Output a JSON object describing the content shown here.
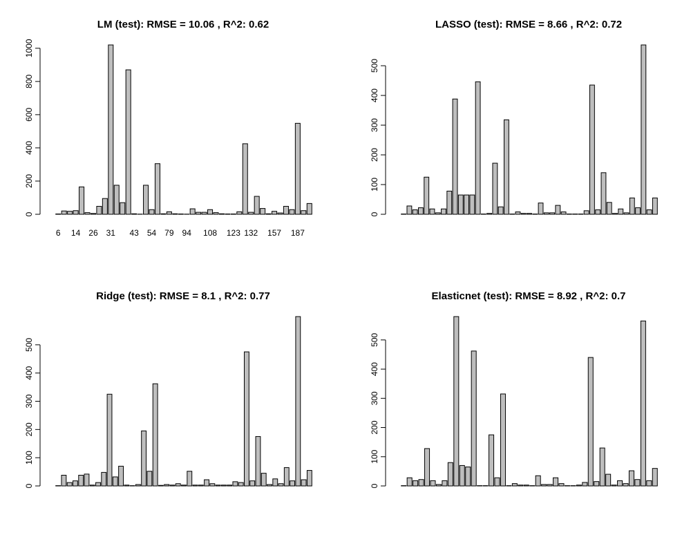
{
  "chart_data": [
    {
      "type": "bar",
      "title": "LM (test): RMSE = 10.06 , R^2: 0.62",
      "xlabel": "",
      "ylabel": "",
      "ylim": [
        0,
        1020
      ],
      "yticks": [
        0,
        200,
        400,
        600,
        800,
        1000
      ],
      "xtick_labels": [
        "6",
        "14",
        "26",
        "31",
        "43",
        "54",
        "79",
        "94",
        "108",
        "123",
        "132",
        "157",
        "187"
      ],
      "xtick_bar_index": [
        0,
        3,
        6,
        9,
        13,
        16,
        19,
        22,
        26,
        30,
        33,
        37,
        41
      ],
      "grid": false,
      "values": [
        2,
        20,
        18,
        22,
        165,
        10,
        5,
        48,
        95,
        1020,
        175,
        70,
        870,
        3,
        1,
        175,
        28,
        305,
        3,
        15,
        3,
        2,
        1,
        33,
        12,
        12,
        28,
        10,
        3,
        2,
        2,
        15,
        425,
        12,
        108,
        35,
        3,
        18,
        8,
        48,
        28,
        548,
        22,
        65
      ]
    },
    {
      "type": "bar",
      "title": "LASSO (test): RMSE = 8.66 , R^2: 0.72",
      "xlabel": "",
      "ylabel": "",
      "ylim": [
        0,
        570
      ],
      "yticks": [
        0,
        100,
        200,
        300,
        400,
        500
      ],
      "grid": false,
      "values": [
        1,
        28,
        15,
        22,
        125,
        18,
        5,
        18,
        78,
        388,
        65,
        65,
        65,
        446,
        1,
        3,
        172,
        25,
        318,
        1,
        8,
        3,
        3,
        1,
        38,
        5,
        5,
        30,
        8,
        1,
        1,
        1,
        12,
        435,
        15,
        140,
        40,
        3,
        18,
        5,
        55,
        22,
        570,
        15,
        55
      ]
    },
    {
      "type": "bar",
      "title": "Ridge (test): RMSE = 8.1 , R^2: 0.77",
      "xlabel": "",
      "ylabel": "",
      "ylim": [
        0,
        600
      ],
      "yticks": [
        0,
        100,
        200,
        300,
        400,
        500
      ],
      "grid": false,
      "values": [
        1,
        38,
        12,
        18,
        38,
        42,
        3,
        12,
        48,
        325,
        32,
        70,
        3,
        1,
        5,
        195,
        52,
        362,
        2,
        5,
        3,
        8,
        3,
        52,
        3,
        3,
        22,
        8,
        3,
        3,
        3,
        15,
        12,
        475,
        18,
        175,
        45,
        5,
        25,
        8,
        65,
        18,
        600,
        22,
        55
      ]
    },
    {
      "type": "bar",
      "title": "Elasticnet (test): RMSE = 8.92 , R^2: 0.7",
      "xlabel": "",
      "ylabel": "",
      "ylim": [
        0,
        580
      ],
      "yticks": [
        0,
        100,
        200,
        300,
        400,
        500
      ],
      "grid": false,
      "values": [
        1,
        28,
        18,
        22,
        128,
        18,
        5,
        18,
        80,
        580,
        70,
        65,
        462,
        1,
        1,
        175,
        28,
        315,
        1,
        8,
        3,
        3,
        1,
        35,
        5,
        5,
        28,
        8,
        1,
        1,
        3,
        12,
        440,
        15,
        130,
        40,
        3,
        18,
        8,
        52,
        22,
        565,
        18,
        60
      ]
    }
  ]
}
